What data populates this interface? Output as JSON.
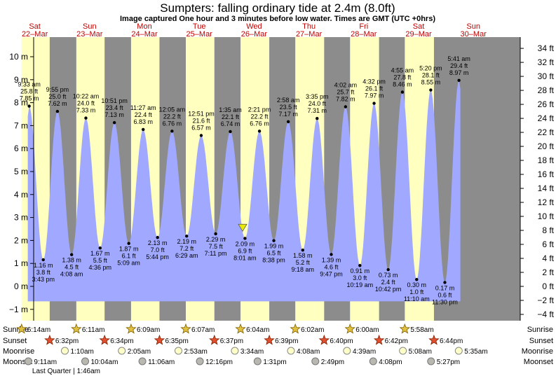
{
  "page": {
    "title": "Sumpters: falling  ordinary tide at 2.4m (8.0ft)",
    "subtitle": "Image captured One hour and 3 minutes before low water. Times are GMT (UTC +0hrs)"
  },
  "colors": {
    "night": "#8c8c8c",
    "day": "#ffffc0",
    "tide_fill": "#a0a8ff",
    "day_label": "#c00000",
    "marker": "#e8e800"
  },
  "chart_data": {
    "type": "area",
    "title": "Sumpters: falling  ordinary tide at 2.4m (8.0ft)",
    "subtitle": "Image captured One hour and 3 minutes before low water. Times are GMT (UTC +0hrs)",
    "y_left": {
      "ylim": [
        -1.6,
        10.5
      ],
      "ticks": [
        -1,
        0,
        1,
        2,
        3,
        4,
        5,
        6,
        7,
        8,
        9,
        10
      ],
      "unit": "m"
    },
    "y_right": {
      "ticks": [
        -4,
        -2,
        0,
        2,
        4,
        6,
        8,
        10,
        12,
        14,
        16,
        18,
        20,
        22,
        24,
        26,
        28,
        30,
        32,
        34
      ],
      "unit": "ft"
    },
    "days": [
      {
        "weekday": "Sat",
        "date": "22–Mar"
      },
      {
        "weekday": "Sun",
        "date": "23–Mar"
      },
      {
        "weekday": "Mon",
        "date": "24–Mar"
      },
      {
        "weekday": "Tue",
        "date": "25–Mar"
      },
      {
        "weekday": "Wed",
        "date": "26–Mar"
      },
      {
        "weekday": "Thu",
        "date": "27–Mar"
      },
      {
        "weekday": "Fri",
        "date": "28–Mar"
      },
      {
        "weekday": "Sat",
        "date": "29–Mar"
      },
      {
        "weekday": "Sun",
        "date": "30–Mar"
      }
    ],
    "tides": [
      {
        "type": "high",
        "day": 0,
        "time": "9:33 am",
        "m": 7.85,
        "ft": "25.8 ft",
        "label": "7.85 m"
      },
      {
        "type": "low",
        "day": 0,
        "time": "3:43 pm",
        "m": 1.16,
        "ft": "3.8 ft",
        "label": "1.16 m"
      },
      {
        "type": "high",
        "day": 0,
        "time": "9:55 pm",
        "m": 7.62,
        "ft": "25.0 ft",
        "label": "7.62 m"
      },
      {
        "type": "low",
        "day": 1,
        "time": "4:08 am",
        "m": 1.38,
        "ft": "4.5 ft",
        "label": "1.38 m"
      },
      {
        "type": "high",
        "day": 1,
        "time": "10:22 am",
        "m": 7.33,
        "ft": "24.0 ft",
        "label": "7.33 m"
      },
      {
        "type": "low",
        "day": 1,
        "time": "4:36 pm",
        "m": 1.67,
        "ft": "5.5 ft",
        "label": "1.67 m"
      },
      {
        "type": "high",
        "day": 1,
        "time": "10:51 pm",
        "m": 7.13,
        "ft": "23.4 ft",
        "label": "7.13 m"
      },
      {
        "type": "low",
        "day": 2,
        "time": "5:09 am",
        "m": 1.87,
        "ft": "6.1 ft",
        "label": "1.87 m"
      },
      {
        "type": "high",
        "day": 2,
        "time": "11:27 am",
        "m": 6.83,
        "ft": "22.4 ft",
        "label": "6.83 m"
      },
      {
        "type": "low",
        "day": 2,
        "time": "5:44 pm",
        "m": 2.13,
        "ft": "7.0 ft",
        "label": "2.13 m"
      },
      {
        "type": "high",
        "day": 3,
        "time": "12:05 am",
        "m": 6.76,
        "ft": "22.2 ft",
        "label": "6.76 m"
      },
      {
        "type": "low",
        "day": 3,
        "time": "6:29 am",
        "m": 2.19,
        "ft": "7.2 ft",
        "label": "2.19 m"
      },
      {
        "type": "high",
        "day": 3,
        "time": "12:51 pm",
        "m": 6.57,
        "ft": "21.6 ft",
        "label": "6.57 m"
      },
      {
        "type": "low",
        "day": 3,
        "time": "7:11 pm",
        "m": 2.29,
        "ft": "7.5 ft",
        "label": "2.29 m"
      },
      {
        "type": "high",
        "day": 4,
        "time": "1:35 am",
        "m": 6.74,
        "ft": "22.1 ft",
        "label": "6.74 m"
      },
      {
        "type": "low",
        "day": 4,
        "time": "8:01 am",
        "m": 2.09,
        "ft": "6.9 ft",
        "label": "2.09 m"
      },
      {
        "type": "high",
        "day": 4,
        "time": "2:21 pm",
        "m": 6.76,
        "ft": "22.2 ft",
        "label": "6.76 m"
      },
      {
        "type": "low",
        "day": 4,
        "time": "8:38 pm",
        "m": 1.99,
        "ft": "6.5 ft",
        "label": "1.99 m"
      },
      {
        "type": "high",
        "day": 5,
        "time": "2:58 am",
        "m": 7.17,
        "ft": "23.5 ft",
        "label": "7.17 m"
      },
      {
        "type": "low",
        "day": 5,
        "time": "9:18 am",
        "m": 1.58,
        "ft": "5.2 ft",
        "label": "1.58 m"
      },
      {
        "type": "high",
        "day": 5,
        "time": "3:35 pm",
        "m": 7.31,
        "ft": "24.0 ft",
        "label": "7.31 m"
      },
      {
        "type": "low",
        "day": 5,
        "time": "9:47 pm",
        "m": 1.39,
        "ft": "4.6 ft",
        "label": "1.39 m"
      },
      {
        "type": "high",
        "day": 6,
        "time": "4:02 am",
        "m": 7.82,
        "ft": "25.7 ft",
        "label": "7.82 m"
      },
      {
        "type": "low",
        "day": 6,
        "time": "10:19 am",
        "m": 0.91,
        "ft": "3.0 ft",
        "label": "0.91 m"
      },
      {
        "type": "high",
        "day": 6,
        "time": "4:32 pm",
        "m": 7.97,
        "ft": "26.1 ft",
        "label": "7.97 m"
      },
      {
        "type": "low",
        "day": 6,
        "time": "10:42 pm",
        "m": 0.73,
        "ft": "2.4 ft",
        "label": "0.73 m"
      },
      {
        "type": "high",
        "day": 7,
        "time": "4:55 am",
        "m": 8.46,
        "ft": "27.8 ft",
        "label": "8.46 m"
      },
      {
        "type": "low",
        "day": 7,
        "time": "11:10 am",
        "m": 0.3,
        "ft": "1.0 ft",
        "label": "0.30 m"
      },
      {
        "type": "high",
        "day": 7,
        "time": "5:20 pm",
        "m": 8.55,
        "ft": "28.1 ft",
        "label": "8.55 m"
      },
      {
        "type": "low",
        "day": 7,
        "time": "11:30 pm",
        "m": 0.17,
        "ft": "0.6 ft",
        "label": "0.17 m"
      },
      {
        "type": "high",
        "day": 8,
        "time": "5:41 am",
        "m": 8.97,
        "ft": "29.4 ft",
        "label": "8.97 m"
      }
    ],
    "current_marker": {
      "day": 4,
      "time": "6:58 am",
      "m": 2.4
    }
  },
  "astro": {
    "labels": {
      "sunrise": "Sunrise",
      "sunset": "Sunset",
      "moonrise": "Moonrise",
      "moonset": "Moonset"
    },
    "sunrise": [
      {
        "day": 0,
        "time": "6:14am"
      },
      {
        "day": 1,
        "time": "6:11am"
      },
      {
        "day": 2,
        "time": "6:09am"
      },
      {
        "day": 3,
        "time": "6:07am"
      },
      {
        "day": 4,
        "time": "6:04am"
      },
      {
        "day": 5,
        "time": "6:02am"
      },
      {
        "day": 6,
        "time": "6:00am"
      },
      {
        "day": 7,
        "time": "5:58am"
      }
    ],
    "sunset": [
      {
        "day": 0,
        "time": "6:32pm"
      },
      {
        "day": 1,
        "time": "6:34pm"
      },
      {
        "day": 2,
        "time": "6:35pm"
      },
      {
        "day": 3,
        "time": "6:37pm"
      },
      {
        "day": 4,
        "time": "6:39pm"
      },
      {
        "day": 5,
        "time": "6:40pm"
      },
      {
        "day": 6,
        "time": "6:42pm"
      },
      {
        "day": 7,
        "time": "6:44pm"
      }
    ],
    "moonrise": [
      {
        "day": 1,
        "time": "1:10am"
      },
      {
        "day": 2,
        "time": "2:05am"
      },
      {
        "day": 3,
        "time": "2:53am"
      },
      {
        "day": 4,
        "time": "3:34am"
      },
      {
        "day": 5,
        "time": "4:08am"
      },
      {
        "day": 6,
        "time": "4:39am"
      },
      {
        "day": 7,
        "time": "5:08am"
      },
      {
        "day": 8,
        "time": "5:35am"
      }
    ],
    "moonset": [
      {
        "day": 0,
        "time": "9:11am"
      },
      {
        "day": 1,
        "time": "10:04am"
      },
      {
        "day": 2,
        "time": "11:06am"
      },
      {
        "day": 3,
        "time": "12:16pm"
      },
      {
        "day": 4,
        "time": "1:31pm"
      },
      {
        "day": 5,
        "time": "2:49pm"
      },
      {
        "day": 6,
        "time": "4:08pm"
      },
      {
        "day": 7,
        "time": "5:27pm"
      }
    ],
    "moon_phase": {
      "day": 1,
      "time": "1:46am",
      "label": "Last Quarter | 1:46am"
    }
  }
}
